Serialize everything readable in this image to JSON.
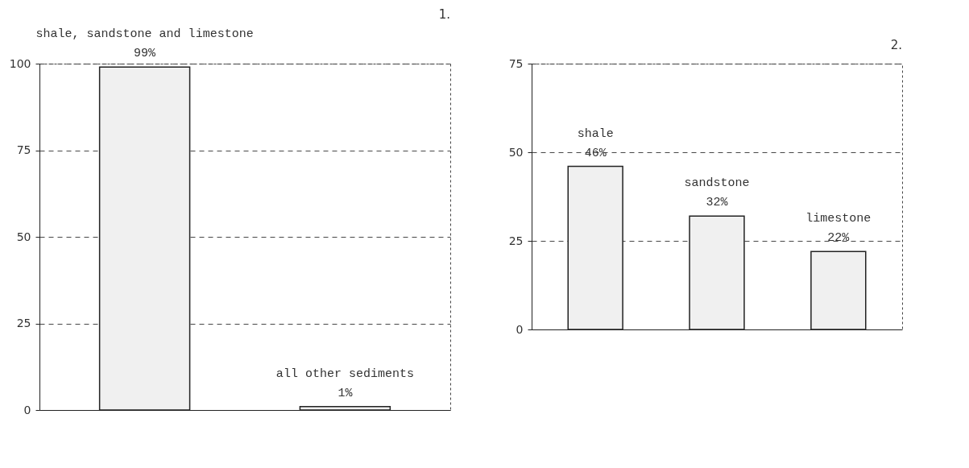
{
  "chart_data": [
    {
      "type": "bar",
      "title": "1.",
      "categories": [
        null,
        null
      ],
      "values": [
        99,
        1
      ],
      "value_labels": [
        "99%",
        "1%"
      ],
      "colors": [
        "#f0f0f0",
        "#f0f0f0"
      ],
      "ylim": [
        0,
        100
      ],
      "yticks": [
        0,
        25,
        50,
        75,
        100
      ],
      "grid": "y",
      "line_style": "dashed",
      "tick_labels": "y",
      "annotations": [
        {
          "text": "shale, sandstone and limestone",
          "y": 99
        },
        {
          "text": "all other sediments",
          "y": 1
        }
      ]
    },
    {
      "type": "bar",
      "title": "2.",
      "categories": [
        null,
        null,
        null
      ],
      "values": [
        46,
        32,
        22
      ],
      "value_labels": [
        "46%",
        "32%",
        "22%"
      ],
      "colors": [
        "#f0f0f0",
        "#f0f0f0",
        "#f0f0f0"
      ],
      "ylim": [
        0,
        75
      ],
      "yticks": [
        0,
        25,
        50,
        75
      ],
      "grid": "y",
      "line_style": "dashed",
      "tick_labels": "y",
      "annotations": [
        {
          "text": "shale",
          "y": 46
        },
        {
          "text": "sandstone",
          "y": 32
        },
        {
          "text": "limestone",
          "y": 22
        }
      ]
    }
  ]
}
